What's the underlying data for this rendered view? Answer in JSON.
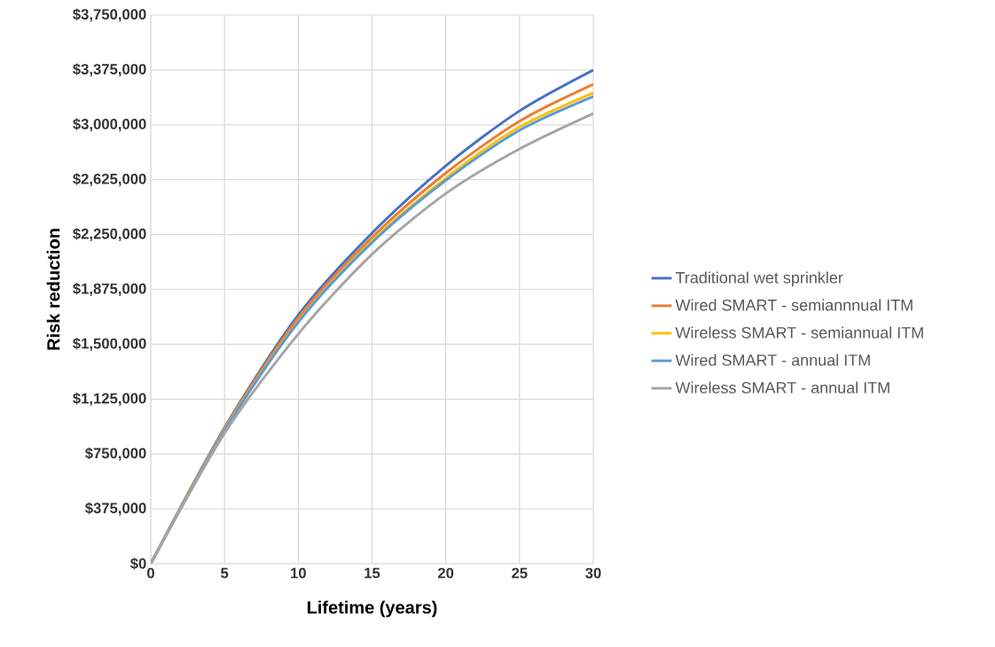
{
  "chart_data": {
    "type": "line",
    "xlabel": "Lifetime (years)",
    "ylabel": "Risk reduction",
    "x": [
      0,
      5,
      10,
      15,
      20,
      25,
      30
    ],
    "xlim": [
      0,
      30
    ],
    "xticks": [
      0,
      5,
      10,
      15,
      20,
      25,
      30
    ],
    "ylim": [
      0,
      3750000
    ],
    "yticks": [
      {
        "value": 0,
        "label": "$0"
      },
      {
        "value": 375000,
        "label": "$375,000"
      },
      {
        "value": 750000,
        "label": "$750,000"
      },
      {
        "value": 1125000,
        "label": "$1,125,000"
      },
      {
        "value": 1500000,
        "label": "$1,500,000"
      },
      {
        "value": 1875000,
        "label": "$1,875,000"
      },
      {
        "value": 2250000,
        "label": "$2,250,000"
      },
      {
        "value": 2625000,
        "label": "$2,625,000"
      },
      {
        "value": 3000000,
        "label": "$3,000,000"
      },
      {
        "value": 3375000,
        "label": "$3,375,000"
      },
      {
        "value": 3750000,
        "label": "$3,750,000"
      }
    ],
    "grid": true,
    "legend": "right",
    "series": [
      {
        "name": "Traditional wet sprinkler",
        "color": "#4472c4",
        "values": [
          0,
          930000,
          1700000,
          2260000,
          2720000,
          3095000,
          3374000
        ]
      },
      {
        "name": "Wired SMART - semiannnual ITM",
        "color": "#ed7d31",
        "values": [
          0,
          925000,
          1680000,
          2230000,
          2670000,
          3025000,
          3277000
        ]
      },
      {
        "name": "Wireless SMART - semiannual ITM",
        "color": "#ffc000",
        "values": [
          0,
          915000,
          1655000,
          2205000,
          2635000,
          2985000,
          3217000
        ]
      },
      {
        "name": "Wired SMART - annual ITM",
        "color": "#5b9bd5",
        "values": [
          0,
          910000,
          1650000,
          2195000,
          2620000,
          2962000,
          3193000
        ]
      },
      {
        "name": "Wireless SMART - annual ITM",
        "color": "#a5a5a5",
        "values": [
          0,
          890000,
          1570000,
          2115000,
          2530000,
          2835000,
          3077000
        ]
      }
    ]
  }
}
